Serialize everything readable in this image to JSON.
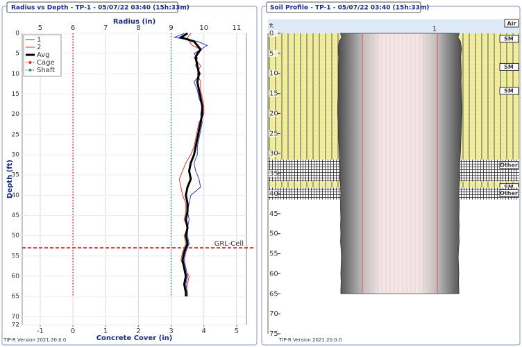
{
  "chart_data": [
    {
      "type": "profile",
      "title": "Radius vs Depth - TP-1 - 05/07/22 03:40 (15h:33m)",
      "xlabel": "Radius (in)",
      "x2label": "Concrete Cover (in)",
      "ylabel": "Depth (ft)",
      "xlim": [
        4.45,
        11.3
      ],
      "xticks": [
        5,
        6,
        7,
        8,
        9,
        10,
        11
      ],
      "x2lim": [
        -1.55,
        5.3
      ],
      "x2ticks": [
        -1,
        0,
        1,
        2,
        3,
        4,
        5
      ],
      "ylim": [
        0,
        72
      ],
      "y_inverted": true,
      "yticks": [
        0,
        5,
        10,
        15,
        20,
        25,
        30,
        35,
        40,
        45,
        50,
        55,
        60,
        65,
        70,
        72
      ],
      "grid": true,
      "depths": [
        0,
        1,
        2,
        3,
        4,
        5,
        6,
        8,
        10,
        12,
        14,
        16,
        18,
        20,
        22,
        24,
        26,
        28,
        30,
        32,
        34,
        36,
        38,
        40,
        42,
        44,
        46,
        48,
        50,
        52,
        54,
        56,
        58,
        60,
        62,
        64,
        65
      ],
      "series": [
        {
          "name": "1",
          "color": "#2b3bc8",
          "width": 1,
          "values": [
            9.4,
            9.1,
            9.8,
            10.1,
            9.9,
            9.7,
            9.8,
            9.75,
            9.9,
            9.7,
            9.8,
            9.85,
            9.95,
            9.9,
            9.95,
            9.9,
            9.85,
            9.8,
            9.8,
            9.7,
            9.75,
            9.85,
            9.9,
            9.6,
            9.55,
            9.5,
            9.55,
            9.5,
            9.5,
            9.55,
            9.45,
            9.4,
            9.45,
            9.5,
            9.45,
            9.5,
            9.5
          ]
        },
        {
          "name": "2",
          "color": "#e0342a",
          "width": 1,
          "values": [
            9.6,
            9.5,
            9.55,
            9.65,
            9.9,
            9.85,
            9.7,
            9.9,
            9.8,
            9.9,
            9.9,
            9.95,
            10.0,
            10.0,
            9.85,
            9.8,
            9.75,
            9.7,
            9.6,
            9.45,
            9.35,
            9.25,
            9.3,
            9.35,
            9.45,
            9.45,
            9.4,
            9.5,
            9.4,
            9.45,
            9.35,
            9.3,
            9.4,
            9.55,
            9.5,
            9.45,
            9.5
          ]
        },
        {
          "name": "Avg",
          "color": "#000000",
          "width": 3,
          "values": [
            9.5,
            9.3,
            9.7,
            9.8,
            9.9,
            9.8,
            9.75,
            9.8,
            9.85,
            9.8,
            9.85,
            9.9,
            9.95,
            9.95,
            9.9,
            9.85,
            9.8,
            9.75,
            9.7,
            9.6,
            9.55,
            9.6,
            9.5,
            9.45,
            9.5,
            9.5,
            9.45,
            9.5,
            9.45,
            9.5,
            9.4,
            9.35,
            9.4,
            9.45,
            9.4,
            9.45,
            9.45
          ]
        },
        {
          "name": "Cage",
          "color": "#e0342a",
          "width": 1.5,
          "dotted": true,
          "depths": [
            0,
            65
          ],
          "values": [
            6,
            6
          ]
        },
        {
          "name": "Shaft",
          "color": "#1f9a6a",
          "width": 1.5,
          "dotted": true,
          "depths": [
            0,
            65
          ],
          "values": [
            9,
            9
          ]
        }
      ],
      "annotation": {
        "text": "GRL-Cell",
        "depth": 53,
        "color": "#e0342a"
      },
      "footer": "TIP-R Version 2021.20.0.0"
    },
    {
      "type": "soil-profile",
      "title": "Soil Profile - TP-1 - 05/07/22 03:40 (15h:33m)",
      "ylabel": "ft",
      "ylim": [
        0,
        75
      ],
      "yticks": [
        0,
        5,
        10,
        15,
        20,
        25,
        30,
        35,
        40,
        45,
        50,
        55,
        60,
        65,
        70,
        75
      ],
      "top_label": "Air",
      "shaft_label": "1",
      "shaft_depth": 65,
      "layers": [
        {
          "name": "SM",
          "top": 0,
          "bottom": 7
        },
        {
          "name": "SM",
          "top": 7,
          "bottom": 13
        },
        {
          "name": "SM",
          "top": 13,
          "bottom": 31.5
        },
        {
          "name": "Other",
          "top": 31.5,
          "bottom": 37
        },
        {
          "name": "SM",
          "top": 37,
          "bottom": 38.5
        },
        {
          "name": "Other",
          "top": 38.5,
          "bottom": 41.5
        }
      ],
      "footer": "TIP-R Version 2021.20.0.0"
    }
  ]
}
